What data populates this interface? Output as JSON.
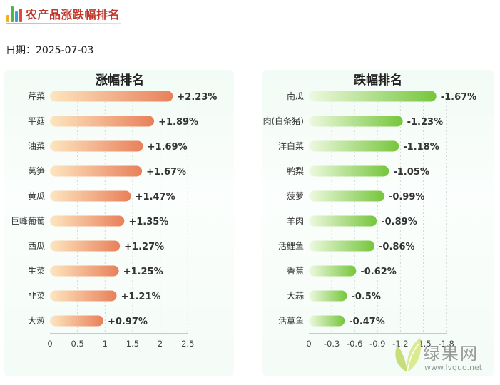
{
  "header": {
    "title": "农产品涨跌幅排名",
    "icon": "bar-chart-icon"
  },
  "date_line": "日期：2025-07-03",
  "colors": {
    "rise_bar_start": "#fde6c0",
    "rise_bar_end": "#e8805a",
    "fall_bar_start": "#eef9e0",
    "fall_bar_end": "#76c63c",
    "axis": "#6fc0e8",
    "title_red": "#c0372c"
  },
  "watermark": {
    "name": "绿果网",
    "url": "www.lvguo.net",
    "icon": "leaf-logo-icon"
  },
  "chart_data": [
    {
      "type": "bar",
      "orientation": "horizontal",
      "title": "涨幅排名",
      "categories": [
        "芹菜",
        "平菇",
        "油菜",
        "莴笋",
        "黄瓜",
        "巨峰葡萄",
        "西瓜",
        "生菜",
        "韭菜",
        "大葱"
      ],
      "values": [
        2.23,
        1.89,
        1.69,
        1.67,
        1.47,
        1.35,
        1.27,
        1.25,
        1.21,
        0.97
      ],
      "data_labels": [
        "+2.23%",
        "+1.89%",
        "+1.69%",
        "+1.67%",
        "+1.47%",
        "+1.35%",
        "+1.27%",
        "+1.25%",
        "+1.21%",
        "+0.97%"
      ],
      "xticks": [
        "0",
        "0.5",
        "1",
        "1.5",
        "2",
        "2.5"
      ],
      "xlim": [
        0,
        2.5
      ],
      "grid": true
    },
    {
      "type": "bar",
      "orientation": "horizontal",
      "title": "跌幅排名",
      "categories": [
        "南瓜",
        "肉(白条猪)",
        "洋白菜",
        "鸭梨",
        "菠萝",
        "羊肉",
        "活鲤鱼",
        "香蕉",
        "大蒜",
        "活草鱼"
      ],
      "values": [
        -1.67,
        -1.23,
        -1.18,
        -1.05,
        -0.99,
        -0.89,
        -0.86,
        -0.62,
        -0.5,
        -0.47
      ],
      "data_labels": [
        "-1.67%",
        "-1.23%",
        "-1.18%",
        "-1.05%",
        "-0.99%",
        "-0.89%",
        "-0.86%",
        "-0.62%",
        "-0.5%",
        "-0.47%"
      ],
      "xticks": [
        "0",
        "-0.3",
        "-0.6",
        "-0.9",
        "-1.2",
        "-1.5",
        "-1.8"
      ],
      "xlim": [
        0,
        -1.8
      ],
      "grid": true
    }
  ]
}
